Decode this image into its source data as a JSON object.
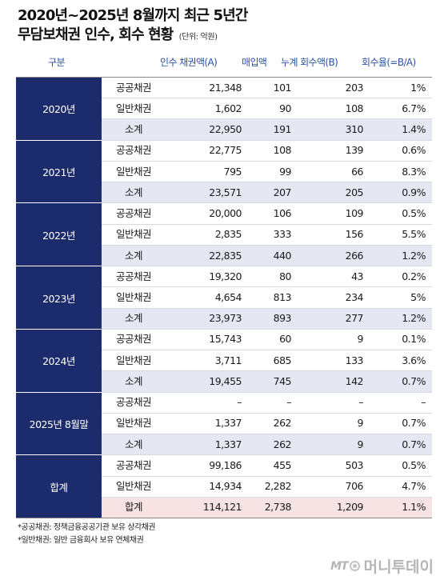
{
  "title": {
    "line1": "2020년~2025년 8월까지 최근 5년간",
    "line2": "무담보채권 인수, 회수 현황",
    "unit": "(단위: 억원)"
  },
  "columns": {
    "category": "구분",
    "acquisition": "인수 채권액(A)",
    "purchase": "매입액",
    "recovery": "누계 회수액(B)",
    "rate": "회수율(=B/A)"
  },
  "groups": [
    {
      "label": "2020년",
      "rows": [
        {
          "type": "공공채권",
          "acq": "21,348",
          "buy": "101",
          "rec": "203",
          "rate": "1%"
        },
        {
          "type": "일반채권",
          "acq": "1,602",
          "buy": "90",
          "rec": "108",
          "rate": "6.7%"
        },
        {
          "type": "소계",
          "acq": "22,950",
          "buy": "191",
          "rec": "310",
          "rate": "1.4%"
        }
      ]
    },
    {
      "label": "2021년",
      "rows": [
        {
          "type": "공공채권",
          "acq": "22,775",
          "buy": "108",
          "rec": "139",
          "rate": "0.6%"
        },
        {
          "type": "일반채권",
          "acq": "795",
          "buy": "99",
          "rec": "66",
          "rate": "8.3%"
        },
        {
          "type": "소계",
          "acq": "23,571",
          "buy": "207",
          "rec": "205",
          "rate": "0.9%"
        }
      ]
    },
    {
      "label": "2022년",
      "rows": [
        {
          "type": "공공채권",
          "acq": "20,000",
          "buy": "106",
          "rec": "109",
          "rate": "0.5%"
        },
        {
          "type": "일반채권",
          "acq": "2,835",
          "buy": "333",
          "rec": "156",
          "rate": "5.5%"
        },
        {
          "type": "소계",
          "acq": "22,835",
          "buy": "440",
          "rec": "266",
          "rate": "1.2%"
        }
      ]
    },
    {
      "label": "2023년",
      "rows": [
        {
          "type": "공공채권",
          "acq": "19,320",
          "buy": "80",
          "rec": "43",
          "rate": "0.2%"
        },
        {
          "type": "일반채권",
          "acq": "4,654",
          "buy": "813",
          "rec": "234",
          "rate": "5%"
        },
        {
          "type": "소계",
          "acq": "23,973",
          "buy": "893",
          "rec": "277",
          "rate": "1.2%"
        }
      ]
    },
    {
      "label": "2024년",
      "rows": [
        {
          "type": "공공채권",
          "acq": "15,743",
          "buy": "60",
          "rec": "9",
          "rate": "0.1%"
        },
        {
          "type": "일반채권",
          "acq": "3,711",
          "buy": "685",
          "rec": "133",
          "rate": "3.6%"
        },
        {
          "type": "소계",
          "acq": "19,455",
          "buy": "745",
          "rec": "142",
          "rate": "0.7%"
        }
      ]
    },
    {
      "label": "2025년 8월말",
      "rows": [
        {
          "type": "공공채권",
          "acq": "–",
          "buy": "–",
          "rec": "–",
          "rate": "–"
        },
        {
          "type": "일반채권",
          "acq": "1,337",
          "buy": "262",
          "rec": "9",
          "rate": "0.7%"
        },
        {
          "type": "소계",
          "acq": "1,337",
          "buy": "262",
          "rec": "9",
          "rate": "0.7%"
        }
      ]
    },
    {
      "label": "합계",
      "rows": [
        {
          "type": "공공채권",
          "acq": "99,186",
          "buy": "455",
          "rec": "503",
          "rate": "0.5%"
        },
        {
          "type": "일반채권",
          "acq": "14,934",
          "buy": "2,282",
          "rec": "706",
          "rate": "4.7%"
        },
        {
          "type": "합계",
          "acq": "114,121",
          "buy": "2,738",
          "rec": "1,209",
          "rate": "1.1%"
        }
      ]
    }
  ],
  "footnotes": [
    "*공공채권: 정책금융공공기관 보유 상각채권",
    "*일반채권: 일반 금융회사 보유 연체채권"
  ],
  "logo": {
    "mark": "MT",
    "name": "머니투데이"
  },
  "colors": {
    "year_bg": "#1c2b6b",
    "header_text": "#2a52a6",
    "subtotal_bg": "#e5e8f3",
    "grand_total_bg": "#f7e3e3"
  }
}
